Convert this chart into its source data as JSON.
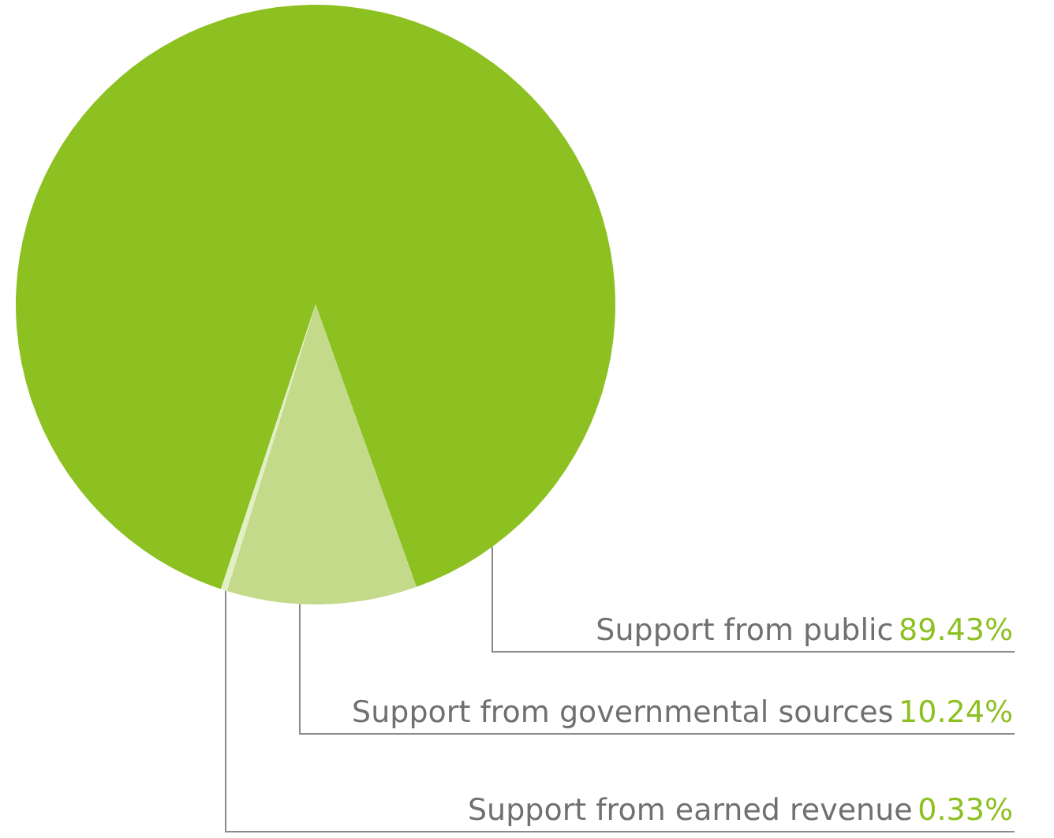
{
  "chart_data": {
    "type": "pie",
    "categories": [
      "Support from public",
      "Support from governmental sources",
      "Support from earned revenue"
    ],
    "values": [
      89.43,
      10.24,
      0.33
    ],
    "value_labels": [
      "89.43%",
      "10.24%",
      "0.33%"
    ],
    "colors": [
      "#8dc021",
      "#c2da8a",
      "#e2efc4"
    ],
    "legend": false
  }
}
